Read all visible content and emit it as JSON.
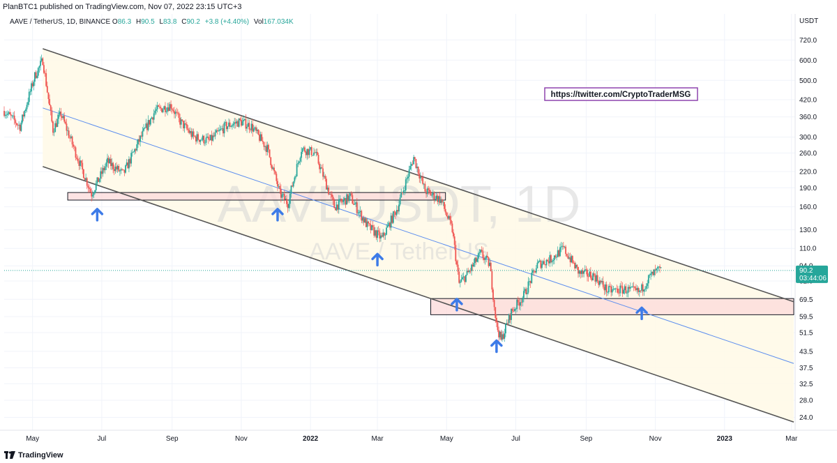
{
  "header": {
    "published_text": "PlanBTC1 published on TradingView.com, Nov 07, 2022 23:15 UTC+3"
  },
  "legend": {
    "symbol": "AAVE / TetherUS, 1D, BINANCE",
    "open_key": "O",
    "open": "86.3",
    "high_key": "H",
    "high": "90.5",
    "low_key": "L",
    "low": "83.8",
    "close_key": "C",
    "close": "90.2",
    "change": "+3.8 (+4.40%)",
    "vol_key": "Vol",
    "vol": "167.034K"
  },
  "watermark": {
    "main": "AAVEUSDT, 1D",
    "sub": "AAVE / TetherUS"
  },
  "annotation_link": "https://twitter.com/CryptoTraderMSG",
  "price_tag": {
    "price": "90.2",
    "countdown": "03:44:06"
  },
  "footer": {
    "brand": "TradingView"
  },
  "colors": {
    "up": "#26a69a",
    "down": "#ef5350",
    "channel_fill": "#fff9e6",
    "midline": "#5b8def",
    "zone_fill": "#fcd9d9",
    "arrow": "#3d7be8",
    "price_tag_bg": "#26a69a",
    "link_border": "#8e44ad"
  },
  "chart_data": {
    "type": "candlestick",
    "title": "AAVEUSDT, 1D",
    "y_axis": {
      "unit": "USDT",
      "scale": "log",
      "ticks": [
        720.0,
        600.0,
        500.0,
        420.0,
        360.0,
        300.0,
        260.0,
        220.0,
        190.0,
        160.0,
        130.0,
        110.0,
        94.0,
        82.0,
        69.5,
        59.5,
        51.5,
        43.5,
        37.5,
        32.5,
        28.0,
        24.0
      ],
      "tick_labels": [
        "720.0",
        "600.0",
        "500.0",
        "420.0",
        "360.0",
        "300.0",
        "260.0",
        "220.0",
        "190.0",
        "160.0",
        "130.0",
        "110.0",
        "94.0",
        "82.0",
        "69.5",
        "59.5",
        "51.5",
        "43.5",
        "37.5",
        "32.5",
        "28.0",
        "24.0"
      ],
      "range": [
        21.5,
        860
      ]
    },
    "x_axis": {
      "range": [
        "2021-04-06",
        "2023-03-03"
      ],
      "ticks": [
        {
          "date": "2021-05-01",
          "label": "May"
        },
        {
          "date": "2021-07-01",
          "label": "Jul"
        },
        {
          "date": "2021-09-01",
          "label": "Sep"
        },
        {
          "date": "2021-11-01",
          "label": "Nov"
        },
        {
          "date": "2022-01-01",
          "label": "2022"
        },
        {
          "date": "2022-03-01",
          "label": "Mar"
        },
        {
          "date": "2022-05-01",
          "label": "May"
        },
        {
          "date": "2022-07-01",
          "label": "Jul"
        },
        {
          "date": "2022-09-01",
          "label": "Sep"
        },
        {
          "date": "2022-11-01",
          "label": "Nov"
        },
        {
          "date": "2023-01-01",
          "label": "2023"
        },
        {
          "date": "2023-03-01",
          "label": "Mar"
        }
      ]
    },
    "price_path": [
      [
        "2021-04-06",
        380
      ],
      [
        "2021-04-20",
        330
      ],
      [
        "2021-05-03",
        520
      ],
      [
        "2021-05-10",
        600
      ],
      [
        "2021-05-19",
        320
      ],
      [
        "2021-05-26",
        370
      ],
      [
        "2021-06-08",
        260
      ],
      [
        "2021-06-22",
        180
      ],
      [
        "2021-07-06",
        240
      ],
      [
        "2021-07-20",
        215
      ],
      [
        "2021-08-03",
        290
      ],
      [
        "2021-08-17",
        380
      ],
      [
        "2021-08-31",
        400
      ],
      [
        "2021-09-07",
        350
      ],
      [
        "2021-09-20",
        300
      ],
      [
        "2021-10-04",
        290
      ],
      [
        "2021-10-18",
        330
      ],
      [
        "2021-10-31",
        345
      ],
      [
        "2021-11-10",
        330
      ],
      [
        "2021-11-24",
        270
      ],
      [
        "2021-12-05",
        180
      ],
      [
        "2021-12-12",
        165
      ],
      [
        "2021-12-24",
        270
      ],
      [
        "2022-01-05",
        260
      ],
      [
        "2022-01-22",
        160
      ],
      [
        "2022-02-05",
        175
      ],
      [
        "2022-02-20",
        135
      ],
      [
        "2022-03-05",
        120
      ],
      [
        "2022-03-19",
        160
      ],
      [
        "2022-04-02",
        250
      ],
      [
        "2022-04-12",
        185
      ],
      [
        "2022-04-26",
        170
      ],
      [
        "2022-05-06",
        130
      ],
      [
        "2022-05-12",
        80
      ],
      [
        "2022-05-20",
        88
      ],
      [
        "2022-05-31",
        105
      ],
      [
        "2022-06-08",
        95
      ],
      [
        "2022-06-14",
        55
      ],
      [
        "2022-06-18",
        48
      ],
      [
        "2022-06-27",
        62
      ],
      [
        "2022-07-08",
        72
      ],
      [
        "2022-07-20",
        95
      ],
      [
        "2022-08-01",
        100
      ],
      [
        "2022-08-12",
        110
      ],
      [
        "2022-08-26",
        88
      ],
      [
        "2022-09-08",
        86
      ],
      [
        "2022-09-20",
        75
      ],
      [
        "2022-10-05",
        76
      ],
      [
        "2022-10-18",
        74
      ],
      [
        "2022-10-27",
        85
      ],
      [
        "2022-11-03",
        90
      ],
      [
        "2022-11-07",
        90.2
      ]
    ],
    "last_price": 90.2,
    "drawings": {
      "channel_upper": [
        [
          "2021-05-10",
          665
        ],
        [
          "2023-03-03",
          68
        ]
      ],
      "channel_lower": [
        [
          "2021-05-10",
          230
        ],
        [
          "2023-03-03",
          23
        ]
      ],
      "midline": [
        [
          "2021-05-10",
          390
        ],
        [
          "2023-03-03",
          39
        ]
      ],
      "zones": [
        {
          "from": "2021-06-01",
          "to": "2022-04-30",
          "low": 170,
          "high": 182
        },
        {
          "from": "2022-04-17",
          "to": "2023-03-03",
          "low": 60.5,
          "high": 70
        }
      ],
      "arrows": [
        "2021-06-27",
        "2021-12-03",
        "2022-03-01",
        "2022-05-10",
        "2022-06-14",
        "2022-10-20"
      ]
    }
  }
}
